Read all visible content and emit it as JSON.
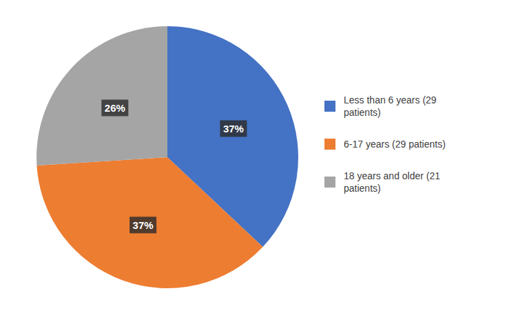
{
  "chart_data": {
    "type": "pie",
    "categories": [
      "Less than 6 years (29\npatients)",
      "6-17 years (29 patients)",
      "18 years and older (21\npatients)"
    ],
    "values": [
      37,
      37,
      26
    ],
    "value_labels": [
      "37%",
      "37%",
      "26%"
    ],
    "colors": [
      "#4472C4",
      "#ED7D31",
      "#A5A5A5"
    ],
    "data_labels": true,
    "legend": "right"
  }
}
